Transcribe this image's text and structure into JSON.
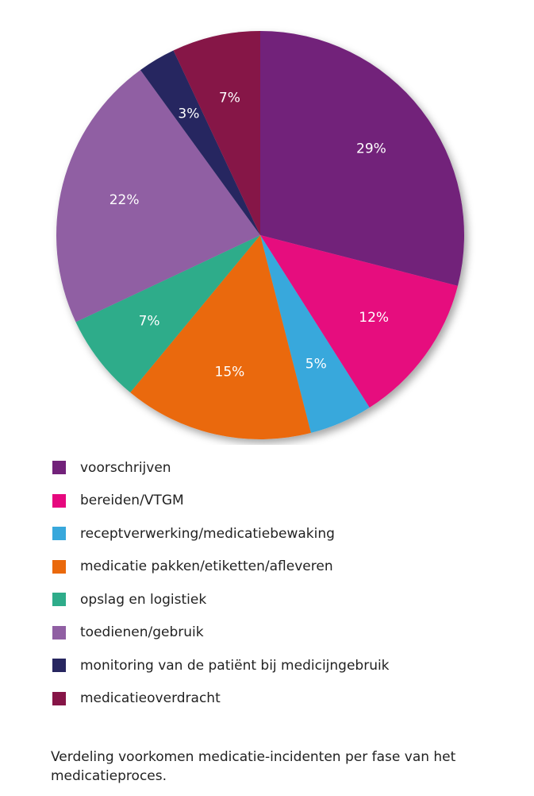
{
  "chart_data": {
    "type": "pie",
    "categories": [
      "voorschrijven",
      "bereiden/VTGM",
      "receptverwerking/medicatiebewaking",
      "medicatie pakken/etiketten/afleveren",
      "opslag en logistiek",
      "toedienen/gebruik",
      "monitoring van de patiënt bij medicijngebruik",
      "medicatieoverdracht"
    ],
    "values": [
      29,
      12,
      5,
      15,
      7,
      22,
      3,
      7
    ],
    "labels": [
      "29%",
      "12%",
      "5%",
      "15%",
      "7%",
      "22%",
      "3%",
      "7%"
    ],
    "colors": [
      "#72227a",
      "#e6087e",
      "#38a8dc",
      "#ea690c",
      "#2eac8a",
      "#905fa3",
      "#272660",
      "#861547"
    ],
    "start": "12 o'clock, clockwise",
    "legend_position": "bottom",
    "caption": "Verdeling voorkomen medicatie-incidenten per fase van het medicatieproces."
  }
}
